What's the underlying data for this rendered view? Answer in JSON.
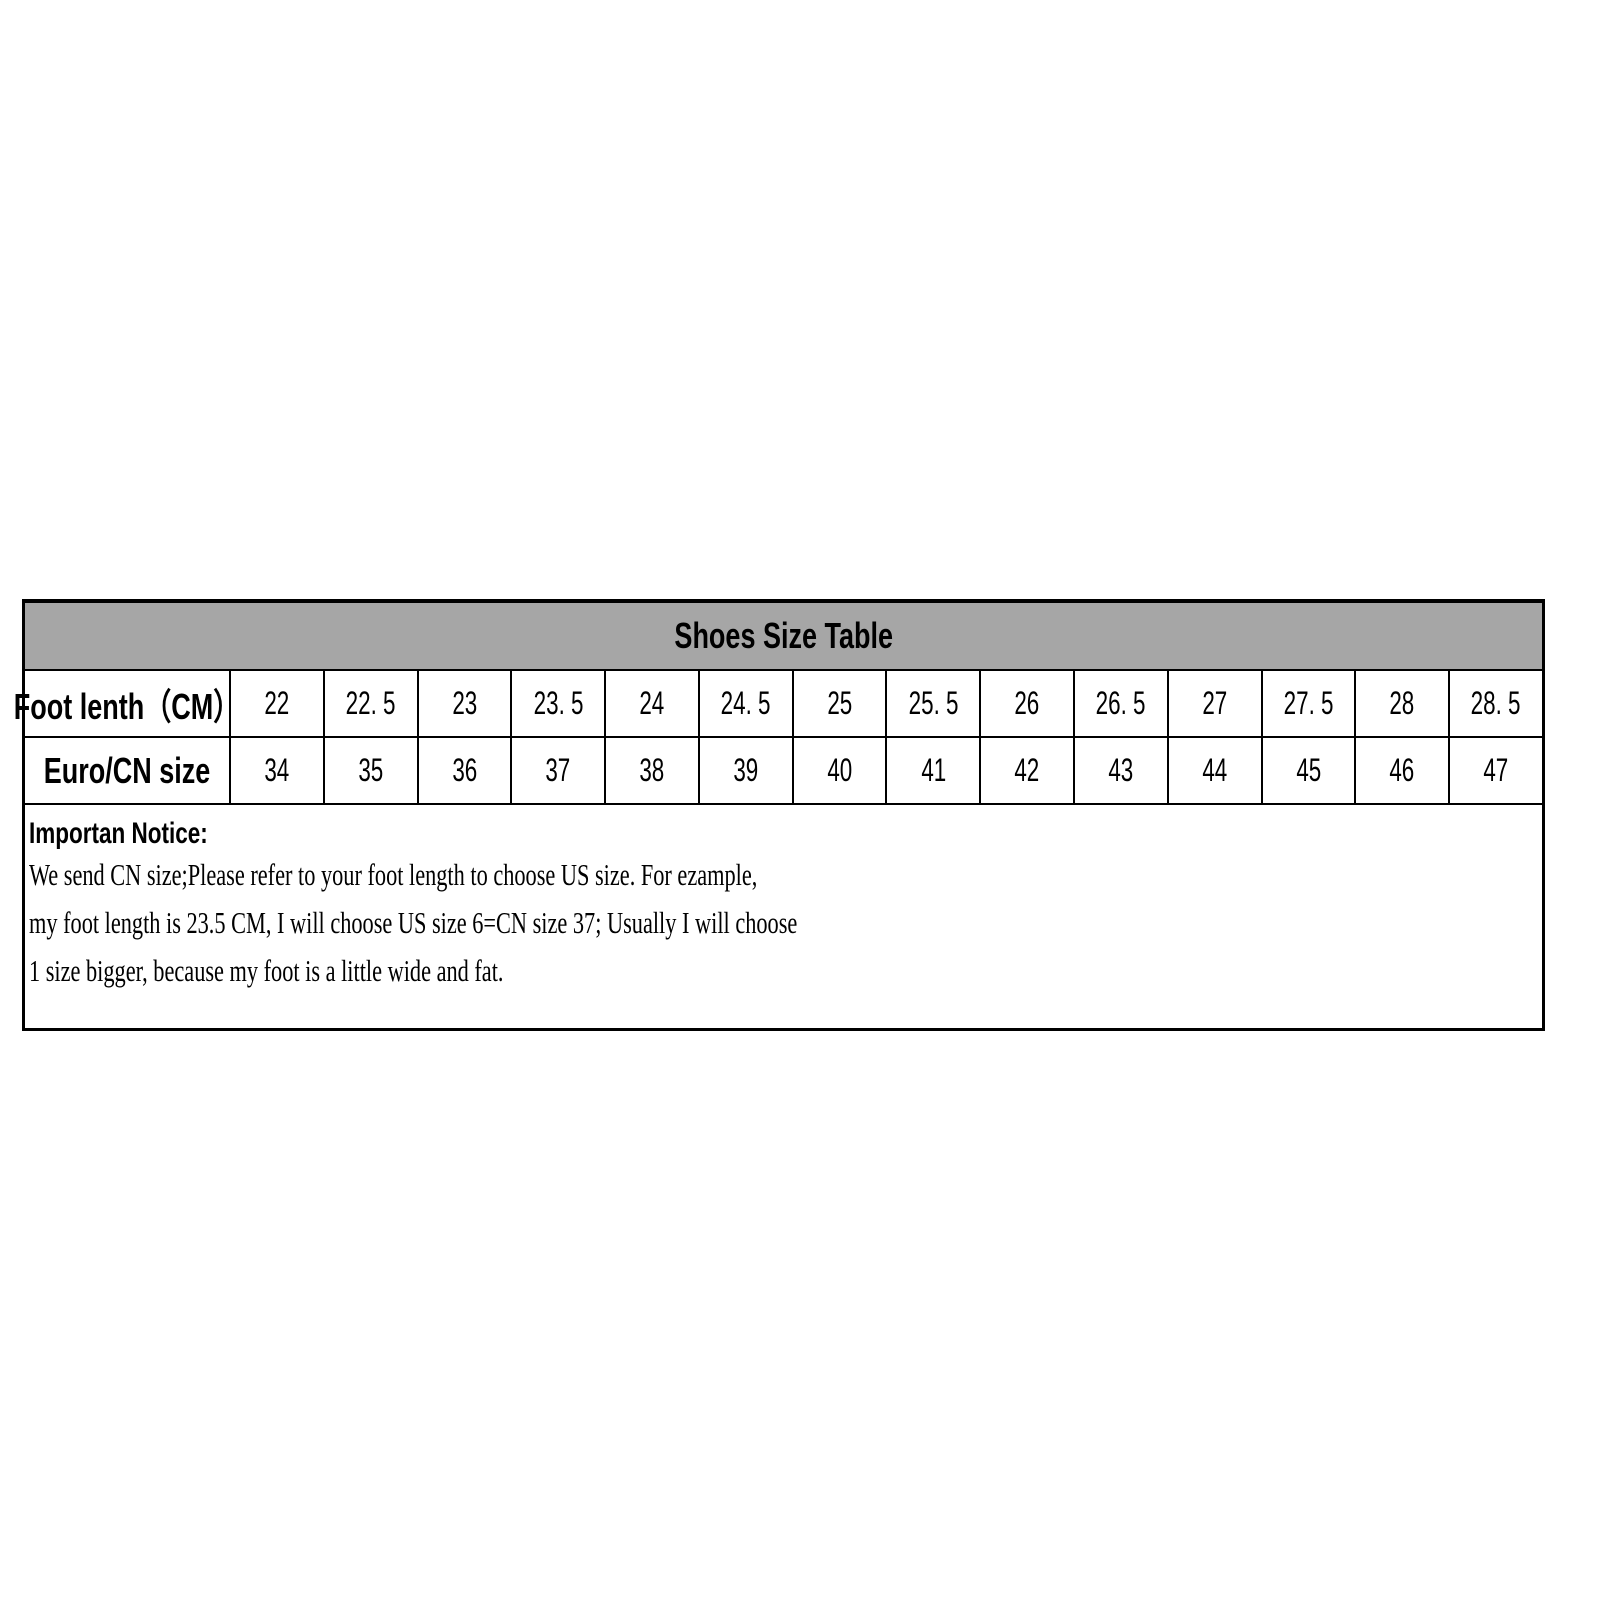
{
  "table": {
    "title": "Shoes Size Table",
    "header_color": "#a6a6a6",
    "rows": [
      {
        "label": "Foot lenth（CM）",
        "values": [
          "22",
          "22. 5",
          "23",
          "23. 5",
          "24",
          "24. 5",
          "25",
          "25. 5",
          "26",
          "26. 5",
          "27",
          "27. 5",
          "28",
          "28. 5"
        ]
      },
      {
        "label": "Euro/CN size",
        "values": [
          "34",
          "35",
          "36",
          "37",
          "38",
          "39",
          "40",
          "41",
          "42",
          "43",
          "44",
          "45",
          "46",
          "47"
        ]
      }
    ]
  },
  "notice": {
    "heading": "Importan Notice:",
    "lines": [
      "We  send CN size;Please refer to your foot length to choose US size. For ezample,",
      "my foot length is 23.5 CM, I will choose US size 6=CN size 37; Usually I will choose",
      "1 size  bigger, because my foot is a little wide and fat."
    ]
  }
}
